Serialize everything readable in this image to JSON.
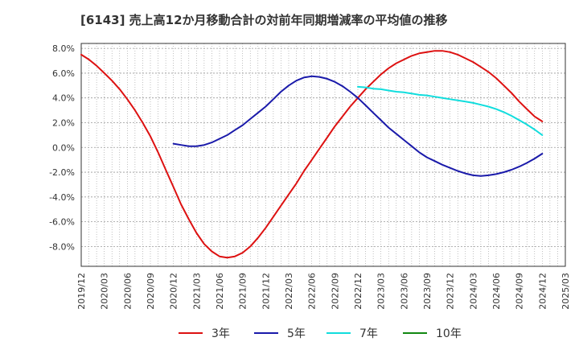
{
  "chart_data": {
    "type": "line",
    "title": "[6143]  売上高12か月移動合計の対前年同期増減率の平均値の推移",
    "xlabel": "",
    "ylabel": "",
    "x_ticks": [
      "2019/12",
      "2020/03",
      "2020/06",
      "2020/09",
      "2020/12",
      "2021/03",
      "2021/06",
      "2021/09",
      "2021/12",
      "2022/03",
      "2022/06",
      "2022/09",
      "2022/12",
      "2023/03",
      "2023/06",
      "2023/09",
      "2023/12",
      "2024/03",
      "2024/06",
      "2024/09",
      "2024/12",
      "2025/03"
    ],
    "y_ticks": [
      "8.0%",
      "6.0%",
      "4.0%",
      "2.0%",
      "0.0%",
      "-2.0%",
      "-4.0%",
      "-6.0%",
      "-8.0%"
    ],
    "y_tick_values": [
      8,
      6,
      4,
      2,
      0,
      -2,
      -4,
      -6,
      -8
    ],
    "ylim": [
      -9.6,
      8.4
    ],
    "grid": true,
    "legend_position": "bottom",
    "series": [
      {
        "name": "3年",
        "color": "#dd1111",
        "x": [
          "2019/12",
          "2020/01",
          "2020/02",
          "2020/03",
          "2020/04",
          "2020/05",
          "2020/06",
          "2020/07",
          "2020/08",
          "2020/09",
          "2020/10",
          "2020/11",
          "2020/12",
          "2021/01",
          "2021/02",
          "2021/03",
          "2021/04",
          "2021/05",
          "2021/06",
          "2021/07",
          "2021/08",
          "2021/09",
          "2021/10",
          "2021/11",
          "2021/12",
          "2022/01",
          "2022/02",
          "2022/03",
          "2022/04",
          "2022/05",
          "2022/06",
          "2022/07",
          "2022/08",
          "2022/09",
          "2022/10",
          "2022/11",
          "2022/12",
          "2023/01",
          "2023/02",
          "2023/03",
          "2023/04",
          "2023/05",
          "2023/06",
          "2023/07",
          "2023/08",
          "2023/09",
          "2023/10",
          "2023/11",
          "2023/12",
          "2024/01",
          "2024/02",
          "2024/03",
          "2024/04",
          "2024/05",
          "2024/06",
          "2024/07",
          "2024/08",
          "2024/09",
          "2024/10",
          "2024/11",
          "2024/12"
        ],
        "values": [
          7.5,
          7.1,
          6.6,
          6.0,
          5.4,
          4.7,
          3.9,
          3.0,
          2.0,
          0.9,
          -0.4,
          -1.8,
          -3.2,
          -4.6,
          -5.8,
          -6.9,
          -7.8,
          -8.4,
          -8.8,
          -8.9,
          -8.8,
          -8.5,
          -8.0,
          -7.3,
          -6.5,
          -5.6,
          -4.7,
          -3.8,
          -2.9,
          -1.9,
          -1.0,
          -0.1,
          0.8,
          1.7,
          2.5,
          3.3,
          4.0,
          4.7,
          5.3,
          5.9,
          6.4,
          6.8,
          7.1,
          7.4,
          7.6,
          7.7,
          7.8,
          7.8,
          7.7,
          7.5,
          7.2,
          6.9,
          6.5,
          6.1,
          5.6,
          5.0,
          4.4,
          3.7,
          3.1,
          2.5,
          2.1
        ]
      },
      {
        "name": "5年",
        "color": "#1a1aaa",
        "x": [
          "2020/12",
          "2021/01",
          "2021/02",
          "2021/03",
          "2021/04",
          "2021/05",
          "2021/06",
          "2021/07",
          "2021/08",
          "2021/09",
          "2021/10",
          "2021/11",
          "2021/12",
          "2022/01",
          "2022/02",
          "2022/03",
          "2022/04",
          "2022/05",
          "2022/06",
          "2022/07",
          "2022/08",
          "2022/09",
          "2022/10",
          "2022/11",
          "2022/12",
          "2023/01",
          "2023/02",
          "2023/03",
          "2023/04",
          "2023/05",
          "2023/06",
          "2023/07",
          "2023/08",
          "2023/09",
          "2023/10",
          "2023/11",
          "2023/12",
          "2024/01",
          "2024/02",
          "2024/03",
          "2024/04",
          "2024/05",
          "2024/06",
          "2024/07",
          "2024/08",
          "2024/09",
          "2024/10",
          "2024/11",
          "2024/12"
        ],
        "values": [
          0.3,
          0.2,
          0.1,
          0.1,
          0.2,
          0.4,
          0.7,
          1.0,
          1.4,
          1.8,
          2.3,
          2.8,
          3.3,
          3.9,
          4.5,
          5.0,
          5.4,
          5.65,
          5.75,
          5.7,
          5.55,
          5.3,
          4.95,
          4.5,
          4.0,
          3.4,
          2.8,
          2.2,
          1.6,
          1.1,
          0.6,
          0.1,
          -0.4,
          -0.8,
          -1.1,
          -1.4,
          -1.65,
          -1.9,
          -2.1,
          -2.25,
          -2.3,
          -2.25,
          -2.15,
          -2.0,
          -1.8,
          -1.55,
          -1.25,
          -0.9,
          -0.5
        ]
      },
      {
        "name": "7年",
        "color": "#11dddd",
        "x": [
          "2022/12",
          "2023/01",
          "2023/02",
          "2023/03",
          "2023/04",
          "2023/05",
          "2023/06",
          "2023/07",
          "2023/08",
          "2023/09",
          "2023/10",
          "2023/11",
          "2023/12",
          "2024/01",
          "2024/02",
          "2024/03",
          "2024/04",
          "2024/05",
          "2024/06",
          "2024/07",
          "2024/08",
          "2024/09",
          "2024/10",
          "2024/11",
          "2024/12"
        ],
        "values": [
          4.9,
          4.85,
          4.75,
          4.7,
          4.6,
          4.5,
          4.45,
          4.35,
          4.25,
          4.2,
          4.1,
          4.0,
          3.9,
          3.8,
          3.7,
          3.6,
          3.45,
          3.3,
          3.1,
          2.85,
          2.55,
          2.2,
          1.85,
          1.45,
          1.0
        ]
      },
      {
        "name": "10年",
        "color": "#118811",
        "x": [],
        "values": []
      }
    ]
  }
}
